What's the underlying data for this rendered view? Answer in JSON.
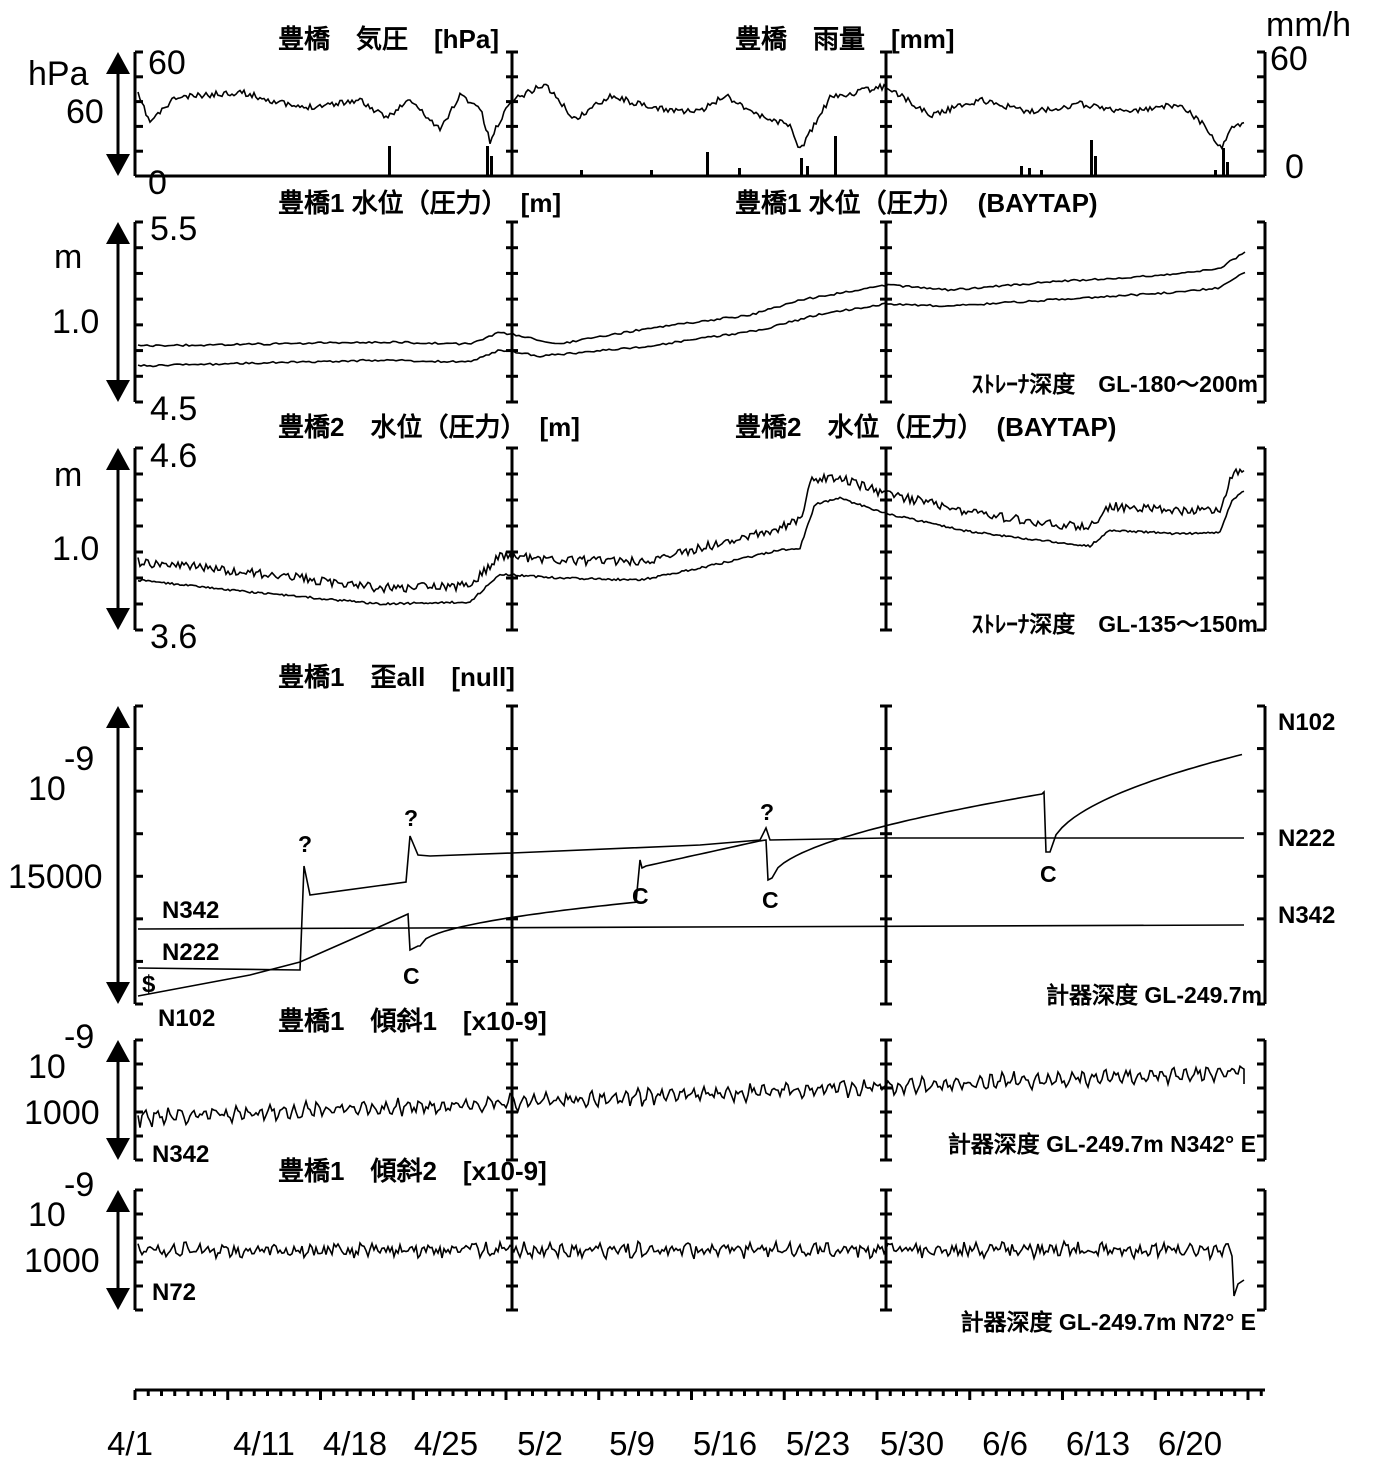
{
  "chart_data": {
    "type": "line",
    "x_range": [
      "4/1",
      "6/23"
    ],
    "date_ticks": [
      "4/1",
      "4/11",
      "4/18",
      "4/25",
      "5/2",
      "5/9",
      "5/16",
      "5/23",
      "5/30",
      "6/6",
      "6/13",
      "6/20"
    ],
    "panels": [
      {
        "id": "pressure-rain",
        "titles": [
          "豊橋　気圧　[hPa]",
          "豊橋　雨量　[mm]"
        ],
        "left_unit": "hPa",
        "left_labels": [
          "60",
          "60",
          "0"
        ],
        "right_unit": "mm/h",
        "right_labels": [
          "60",
          "0"
        ],
        "annotations": []
      },
      {
        "id": "water-level-1",
        "titles": [
          "豊橋1 水位（圧力）　[m]",
          "豊橋1 水位（圧力）　(BAYTAP)"
        ],
        "left_unit": "m",
        "left_labels": [
          "5.5",
          "1.0",
          "4.5"
        ],
        "note": "ｽﾄﾚｰﾅ深度　GL-180～200m",
        "annotations": []
      },
      {
        "id": "water-level-2",
        "titles": [
          "豊橋2　水位（圧力）　[m]",
          "豊橋2　水位（圧力）　(BAYTAP)"
        ],
        "left_unit": "m",
        "left_labels": [
          "4.6",
          "1.0",
          "3.6"
        ],
        "note": "ｽﾄﾚｰﾅ深度　GL-135～150m",
        "annotations": []
      },
      {
        "id": "strain",
        "titles": [
          "豊橋1　歪all　[null]"
        ],
        "left_labels": [
          "10",
          "-9",
          "15000"
        ],
        "right_labels": [
          "N102",
          "N222",
          "N342"
        ],
        "series_labels": [
          "N342",
          "N222",
          "$",
          "N102"
        ],
        "note": "計器深度 GL-249.7m",
        "annotations": [
          "?",
          "?",
          "?",
          "C",
          "C",
          "C",
          "C"
        ]
      },
      {
        "id": "tilt-1",
        "titles": [
          "豊橋1　傾斜1　[x10-9]"
        ],
        "left_labels": [
          "10",
          "-9",
          "1000"
        ],
        "series_label": "N342",
        "note": "計器深度 GL-249.7m N342° E",
        "annotations": []
      },
      {
        "id": "tilt-2",
        "titles": [
          "豊橋1　傾斜2　[x10-9]"
        ],
        "left_labels": [
          "10",
          "-9",
          "1000"
        ],
        "series_label": "N72",
        "note": "計器深度 GL-249.7m N72° E",
        "annotations": []
      }
    ]
  }
}
